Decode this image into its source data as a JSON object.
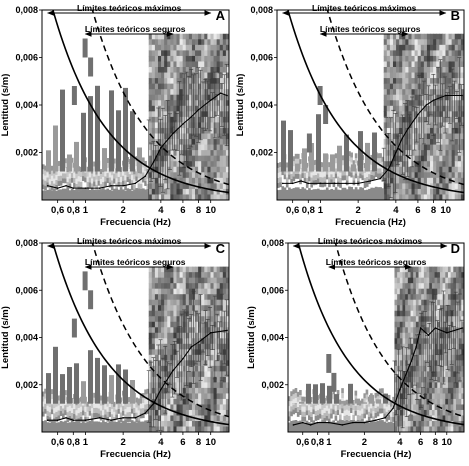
{
  "figure": {
    "panels": [
      {
        "letter": "A"
      },
      {
        "letter": "B"
      },
      {
        "letter": "C"
      },
      {
        "letter": "D"
      }
    ]
  },
  "chart_data": [
    {
      "type": "heatmap",
      "panel_label": "A",
      "xlabel": "Frecuencia (Hz)",
      "ylabel": "Lentitud (s/m)",
      "x_scale": "log",
      "xlim": [
        0.45,
        14
      ],
      "ylim": [
        0,
        0.008
      ],
      "x_ticks": [
        0.6,
        0.8,
        1,
        2,
        4,
        6,
        8,
        10
      ],
      "x_tick_labels": [
        "0,6",
        "0,8",
        "1",
        "2",
        "4",
        "6",
        "8",
        "10"
      ],
      "y_ticks": [
        0.002,
        0.004,
        0.006,
        0.008
      ],
      "y_tick_labels": [
        "0,002",
        "0,004",
        "0,006",
        "0,008"
      ],
      "annotations": [
        {
          "text": "Límites teóricos máximos",
          "x_range": [
            0.5,
            10
          ]
        },
        {
          "text": "Límites teóricos seguros",
          "x_range": [
            1,
            5
          ]
        }
      ],
      "curves": {
        "limit_max": {
          "k": 0.0044,
          "style": "solid"
        },
        "limit_safe": {
          "k": 0.0091,
          "style": "dashed"
        }
      },
      "dispersion_curve": {
        "x": [
          0.5,
          0.6,
          0.7,
          0.8,
          1.0,
          1.3,
          1.6,
          2.0,
          2.5,
          3.0,
          3.5,
          4.0,
          5.0,
          6.0,
          7.0,
          8.0,
          10.0,
          12.0,
          13.5
        ],
        "y": [
          0.0006,
          0.0005,
          0.0006,
          0.0005,
          0.0005,
          0.0005,
          0.0006,
          0.0006,
          0.0007,
          0.001,
          0.0016,
          0.0022,
          0.0028,
          0.0032,
          0.0035,
          0.0038,
          0.0042,
          0.0045,
          0.0044
        ]
      }
    },
    {
      "type": "heatmap",
      "panel_label": "B",
      "xlabel": "Frecuencia (Hz)",
      "ylabel": "Lentitud (s/m)",
      "x_scale": "log",
      "xlim": [
        0.45,
        14
      ],
      "ylim": [
        0,
        0.008
      ],
      "x_ticks": [
        0.6,
        0.8,
        1,
        2,
        4,
        6,
        8,
        10
      ],
      "x_tick_labels": [
        "0,6",
        "0,8",
        "1",
        "2",
        "4",
        "6",
        "8",
        "10"
      ],
      "y_ticks": [
        0.002,
        0.004,
        0.006,
        0.008
      ],
      "y_tick_labels": [
        "0,002",
        "0,004",
        "0,006",
        "0,008"
      ],
      "annotations": [
        {
          "text": "Límites teóricos máximos",
          "x_range": [
            0.5,
            10
          ]
        },
        {
          "text": "Límites teóricos seguros",
          "x_range": [
            1,
            5
          ]
        }
      ],
      "curves": {
        "limit_max": {
          "k": 0.0044,
          "style": "solid"
        },
        "limit_safe": {
          "k": 0.0091,
          "style": "dashed"
        }
      },
      "dispersion_curve": {
        "x": [
          0.5,
          0.6,
          0.7,
          0.8,
          1.0,
          1.3,
          1.6,
          2.0,
          2.5,
          3.0,
          3.5,
          4.0,
          4.5,
          5.0,
          6.0,
          7.0,
          8.0,
          10.0,
          13.5
        ],
        "y": [
          0.0007,
          0.0007,
          0.0008,
          0.0007,
          0.0007,
          0.0007,
          0.0007,
          0.0007,
          0.0008,
          0.0009,
          0.0013,
          0.002,
          0.0026,
          0.003,
          0.0036,
          0.004,
          0.0042,
          0.0044,
          0.0044
        ]
      }
    },
    {
      "type": "heatmap",
      "panel_label": "C",
      "xlabel": "Frecuencia (Hz)",
      "ylabel": "Lentitud (s/m)",
      "x_scale": "log",
      "xlim": [
        0.45,
        14
      ],
      "ylim": [
        0,
        0.008
      ],
      "x_ticks": [
        0.6,
        0.8,
        1,
        2,
        4,
        6,
        8,
        10
      ],
      "x_tick_labels": [
        "0,6",
        "0,8",
        "1",
        "2",
        "4",
        "6",
        "8",
        "10"
      ],
      "y_ticks": [
        0.002,
        0.004,
        0.006,
        0.008
      ],
      "y_tick_labels": [
        "0,002",
        "0,004",
        "0,006",
        "0,008"
      ],
      "annotations": [
        {
          "text": "Límites teóricos máximos",
          "x_range": [
            0.5,
            10
          ]
        },
        {
          "text": "Límites teóricos seguros",
          "x_range": [
            1,
            5
          ]
        }
      ],
      "curves": {
        "limit_max": {
          "k": 0.0044,
          "style": "solid"
        },
        "limit_safe": {
          "k": 0.0091,
          "style": "dashed"
        }
      },
      "dispersion_curve": {
        "x": [
          0.5,
          0.6,
          0.7,
          0.8,
          1.0,
          1.3,
          1.6,
          2.0,
          2.5,
          3.0,
          3.5,
          4.0,
          5.0,
          6.0,
          7.0,
          8.0,
          10.0,
          13.5
        ],
        "y": [
          0.0005,
          0.0005,
          0.0006,
          0.0005,
          0.0005,
          0.0006,
          0.0005,
          0.0006,
          0.0006,
          0.0008,
          0.0012,
          0.0018,
          0.0026,
          0.0031,
          0.0036,
          0.0038,
          0.0042,
          0.0043
        ]
      }
    },
    {
      "type": "heatmap",
      "panel_label": "D",
      "xlabel": "Frecuencia (Hz)",
      "ylabel": "Lentitud (s/m)",
      "x_scale": "log",
      "xlim": [
        0.45,
        14
      ],
      "ylim": [
        0,
        0.008
      ],
      "x_ticks": [
        0.6,
        0.8,
        1,
        2,
        4,
        6,
        8,
        10
      ],
      "x_tick_labels": [
        "0,6",
        "0,8",
        "1",
        "2",
        "4",
        "6",
        "8",
        "10"
      ],
      "y_ticks": [
        0.002,
        0.004,
        0.006,
        0.008
      ],
      "y_tick_labels": [
        "0,002",
        "0,004",
        "0,006",
        "0,008"
      ],
      "annotations": [
        {
          "text": "Límites teóricos máximos",
          "x_range": [
            0.5,
            10
          ]
        },
        {
          "text": "Límites teóricos seguros",
          "x_range": [
            1,
            5
          ]
        }
      ],
      "curves": {
        "limit_max": {
          "k": 0.0044,
          "style": "solid"
        },
        "limit_safe": {
          "k": 0.0091,
          "style": "dashed"
        }
      },
      "dispersion_curve": {
        "x": [
          0.5,
          0.6,
          0.7,
          0.8,
          1.0,
          1.3,
          1.6,
          2.0,
          2.5,
          3.0,
          3.5,
          4.0,
          5.0,
          5.5,
          6.0,
          7.0,
          8.0,
          10.0,
          13.5
        ],
        "y": [
          0.0003,
          0.0004,
          0.0003,
          0.0004,
          0.0004,
          0.0003,
          0.0004,
          0.0004,
          0.0005,
          0.0006,
          0.001,
          0.0018,
          0.003,
          0.0036,
          0.0044,
          0.0041,
          0.0044,
          0.0042,
          0.0044
        ]
      }
    }
  ]
}
